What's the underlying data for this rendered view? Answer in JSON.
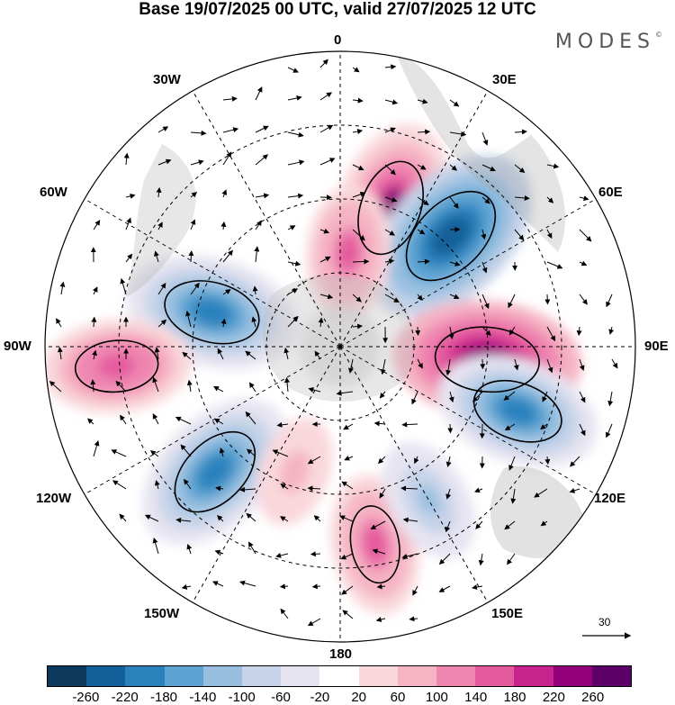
{
  "title": "Base 19/07/2025 00 UTC, valid 27/07/2025 12 UTC",
  "brand": "MODES",
  "brand_mark": "©",
  "longitude_labels": {
    "n": "0",
    "ne": "30E",
    "ene": "60E",
    "e": "90E",
    "ese": "120E",
    "se": "150E",
    "s": "180",
    "sw": "150W",
    "wsw": "120W",
    "w": "90W",
    "wnw": "60W",
    "nw": "30W"
  },
  "reference_vector": "30",
  "colorbar": {
    "colors": [
      "#0d3a5c",
      "#12609a",
      "#2a82bd",
      "#5ea4d2",
      "#98bfe0",
      "#c6d3e8",
      "#e6e4f1",
      "#ffffff",
      "#f9d8dc",
      "#f5b4c4",
      "#ef86b0",
      "#e45a9f",
      "#c8238c",
      "#92017a",
      "#5c0068"
    ],
    "ticks": [
      "-260",
      "-220",
      "-180",
      "-140",
      "-100",
      "-60",
      "-20",
      "20",
      "60",
      "100",
      "140",
      "180",
      "220",
      "260"
    ]
  },
  "chart_data": {
    "type": "heatmap",
    "projection": "south polar stereographic",
    "title": "Base 19/07/2025 00 UTC, valid 27/07/2025 12 UTC",
    "variable_range": [
      -260,
      260
    ],
    "anomalies": [
      {
        "lon_label": "20E",
        "sign": "positive",
        "peak": 220
      },
      {
        "lon_label": "45E",
        "sign": "negative",
        "peak": -260
      },
      {
        "lon_label": "75W",
        "sign": "negative",
        "peak": -220
      },
      {
        "lon_label": "5E",
        "sign": "positive",
        "peak": 140
      },
      {
        "lon_label": "95E",
        "sign": "positive",
        "peak": 250
      },
      {
        "lon_label": "110E",
        "sign": "negative",
        "peak": -200
      },
      {
        "lon_label": "95W",
        "sign": "positive",
        "peak": 170
      },
      {
        "lon_label": "135W",
        "sign": "negative",
        "peak": -220
      },
      {
        "lon_label": "170E",
        "sign": "positive",
        "peak": 150
      },
      {
        "lon_label": "150E",
        "sign": "negative",
        "peak": -120
      },
      {
        "lon_label": "160W",
        "sign": "positive",
        "peak": 90
      }
    ]
  }
}
